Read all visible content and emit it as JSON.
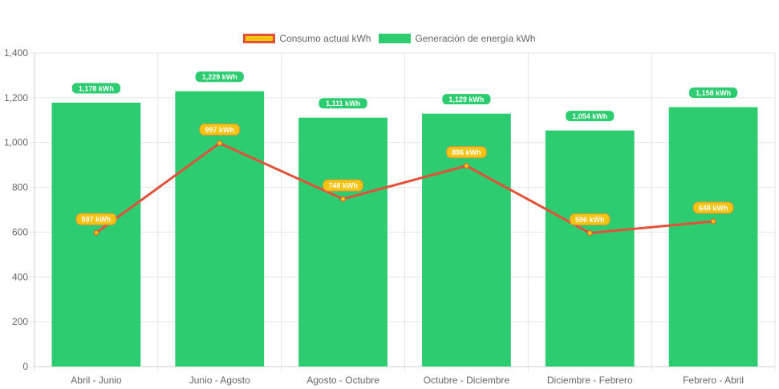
{
  "chart_data": {
    "type": "bar",
    "categories": [
      "Abril - Junio",
      "Junio - Agosto",
      "Agosto - Octubre",
      "Octubre - Diciembre",
      "Diciembre - Febrero",
      "Febrero - Abril"
    ],
    "series": [
      {
        "name": "Consumo actual kWh",
        "type": "line",
        "values": [
          597,
          997,
          748,
          896,
          596,
          648
        ],
        "labels": [
          "597 kWh",
          "997 kWh",
          "748 kWh",
          "896 kWh",
          "596 kWh",
          "648 kWh"
        ]
      },
      {
        "name": "Generación de energía kWh",
        "type": "bar",
        "values": [
          1178,
          1229,
          1111,
          1129,
          1054,
          1158
        ],
        "labels": [
          "1,178 kWh",
          "1,229 kWh",
          "1,111 kWh",
          "1,129 kWh",
          "1,054 kWh",
          "1,158 kWh"
        ]
      }
    ],
    "ylim": [
      0,
      1400
    ],
    "yticks": [
      0,
      200,
      400,
      600,
      800,
      1000,
      1200,
      1400
    ],
    "ytick_labels": [
      "0",
      "200",
      "400",
      "600",
      "800",
      "1,000",
      "1,200",
      "1,400"
    ],
    "grid": true,
    "legend_position": "top-center"
  },
  "colors": {
    "bar": "#2ecc71",
    "line": "#e2513a",
    "point": "#f5c311",
    "grid": "#e5e5e5",
    "axis_text": "#666666"
  }
}
